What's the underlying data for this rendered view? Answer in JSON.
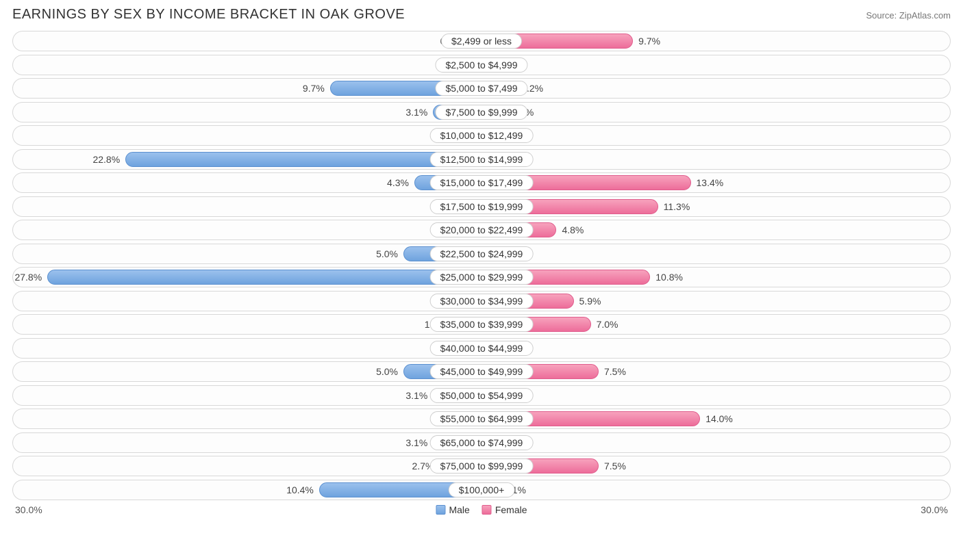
{
  "title": "EARNINGS BY SEX BY INCOME BRACKET IN OAK GROVE",
  "source": "Source: ZipAtlas.com",
  "axis_max": 30.0,
  "axis_label_left": "30.0%",
  "axis_label_right": "30.0%",
  "legend": {
    "male": "Male",
    "female": "Female"
  },
  "colors": {
    "male_fill_top": "#9bc1ed",
    "male_fill_bottom": "#6fa3de",
    "male_border": "#5a8fcf",
    "female_fill_top": "#f7a2bd",
    "female_fill_bottom": "#ed6d9a",
    "female_border": "#e05c8c",
    "track_border": "#d8d8d8",
    "track_bg": "#fdfdfd",
    "text": "#333333",
    "muted": "#777777",
    "label_border": "#cfcfcf",
    "background": "#ffffff"
  },
  "min_bar_pct": 3.0,
  "rows": [
    {
      "category": "$2,499 or less",
      "male": 0.0,
      "female": 9.7
    },
    {
      "category": "$2,500 to $4,999",
      "male": 0.0,
      "female": 1.1
    },
    {
      "category": "$5,000 to $7,499",
      "male": 9.7,
      "female": 2.2
    },
    {
      "category": "$7,500 to $9,999",
      "male": 3.1,
      "female": 1.6
    },
    {
      "category": "$10,000 to $12,499",
      "male": 1.2,
      "female": 0.0
    },
    {
      "category": "$12,500 to $14,999",
      "male": 22.8,
      "female": 0.0
    },
    {
      "category": "$15,000 to $17,499",
      "male": 4.3,
      "female": 13.4
    },
    {
      "category": "$17,500 to $19,999",
      "male": 0.0,
      "female": 11.3
    },
    {
      "category": "$20,000 to $22,499",
      "male": 0.0,
      "female": 4.8
    },
    {
      "category": "$22,500 to $24,999",
      "male": 5.0,
      "female": 0.0
    },
    {
      "category": "$25,000 to $29,999",
      "male": 27.8,
      "female": 10.8
    },
    {
      "category": "$30,000 to $34,999",
      "male": 0.0,
      "female": 5.9
    },
    {
      "category": "$35,000 to $39,999",
      "male": 1.9,
      "female": 7.0
    },
    {
      "category": "$40,000 to $44,999",
      "male": 0.0,
      "female": 0.0
    },
    {
      "category": "$45,000 to $49,999",
      "male": 5.0,
      "female": 7.5
    },
    {
      "category": "$50,000 to $54,999",
      "male": 3.1,
      "female": 1.1
    },
    {
      "category": "$55,000 to $64,999",
      "male": 0.0,
      "female": 14.0
    },
    {
      "category": "$65,000 to $74,999",
      "male": 3.1,
      "female": 1.1
    },
    {
      "category": "$75,000 to $99,999",
      "male": 2.7,
      "female": 7.5
    },
    {
      "category": "$100,000+",
      "male": 10.4,
      "female": 1.1
    }
  ]
}
